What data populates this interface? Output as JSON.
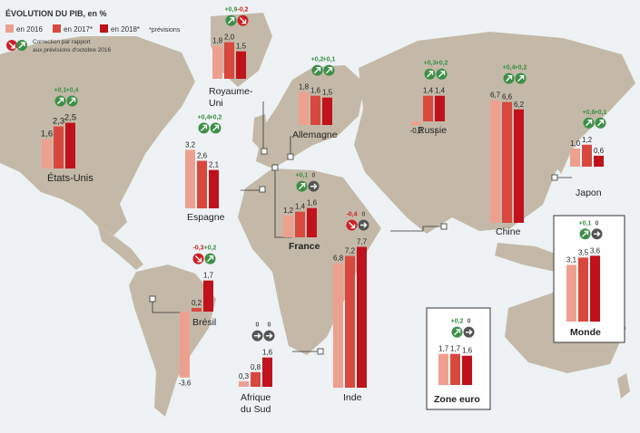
{
  "header": {
    "title": "ÉVOLUTION DU PIB, en %",
    "legend_2016": "en 2016",
    "legend_2017": "en 2017*",
    "legend_2018": "en 2018*",
    "forecast_note": "*prévisions",
    "correction_note_line1": "Correction par rapport",
    "correction_note_line2": "aux prévisions d'octobre 2016"
  },
  "colors": {
    "y2016": "#eea090",
    "y2017": "#d9483e",
    "y2018": "#c0121c",
    "land": "#c4b9a8",
    "sea": "#eef2f4",
    "up_badge": "#3d8f48",
    "down_badge": "#cc2027",
    "flat_badge": "#555555"
  },
  "chart_data": [
    {
      "type": "bar",
      "name": "États-Unis",
      "name_lines": [
        "États-Unis"
      ],
      "categories": [
        "2016",
        "2017*",
        "2018*"
      ],
      "values": [
        1.6,
        2.3,
        2.5
      ],
      "labels": [
        "1,6",
        "2,3",
        "2,5"
      ],
      "corrections": [
        {
          "label": "+0,1",
          "dir": "up"
        },
        {
          "label": "+0,4",
          "dir": "up"
        }
      ]
    },
    {
      "type": "bar",
      "name": "Royaume-Uni",
      "name_lines": [
        "Royaume-",
        "Uni"
      ],
      "categories": [
        "2016",
        "2017*",
        "2018*"
      ],
      "values": [
        1.8,
        2.0,
        1.5
      ],
      "labels": [
        "1,8",
        "2,0",
        "1,5"
      ],
      "corrections": [
        {
          "label": "+0,9",
          "dir": "up"
        },
        {
          "label": "-0,2",
          "dir": "down"
        }
      ]
    },
    {
      "type": "bar",
      "name": "Allemagne",
      "name_lines": [
        "Allemagne"
      ],
      "categories": [
        "2016",
        "2017*",
        "2018*"
      ],
      "values": [
        1.8,
        1.6,
        1.5
      ],
      "labels": [
        "1,8",
        "1,6",
        "1,5"
      ],
      "corrections": [
        {
          "label": "+0,2",
          "dir": "up"
        },
        {
          "label": "+0,1",
          "dir": "up"
        }
      ]
    },
    {
      "type": "bar",
      "name": "Russie",
      "name_lines": [
        "Russie"
      ],
      "categories": [
        "2016",
        "2017*",
        "2018*"
      ],
      "values": [
        -0.2,
        1.4,
        1.4
      ],
      "labels": [
        "-0,2",
        "1,4",
        "1,4"
      ],
      "corrections": [
        {
          "label": "+0,3",
          "dir": "up"
        },
        {
          "label": "+0,2",
          "dir": "up"
        }
      ]
    },
    {
      "type": "bar",
      "name": "Chine",
      "name_lines": [
        "Chine"
      ],
      "categories": [
        "2016",
        "2017*",
        "2018*"
      ],
      "values": [
        6.7,
        6.6,
        6.2
      ],
      "labels": [
        "6,7",
        "6,6",
        "6,2"
      ],
      "corrections": [
        {
          "label": "+0,4",
          "dir": "up"
        },
        {
          "label": "+0,2",
          "dir": "up"
        }
      ]
    },
    {
      "type": "bar",
      "name": "Japon",
      "name_lines": [
        "Japon"
      ],
      "categories": [
        "2016",
        "2017*",
        "2018*"
      ],
      "values": [
        1.0,
        1.2,
        0.6
      ],
      "labels": [
        "1,0",
        "1,2",
        "0,6"
      ],
      "corrections": [
        {
          "label": "+0,6",
          "dir": "up"
        },
        {
          "label": "+0,1",
          "dir": "up"
        }
      ]
    },
    {
      "type": "bar",
      "name": "Espagne",
      "name_lines": [
        "Espagne"
      ],
      "categories": [
        "2016",
        "2017*",
        "2018*"
      ],
      "values": [
        3.2,
        2.6,
        2.1
      ],
      "labels": [
        "3,2",
        "2,6",
        "2,1"
      ],
      "corrections": [
        {
          "label": "+0,4",
          "dir": "up"
        },
        {
          "label": "+0,2",
          "dir": "up"
        }
      ]
    },
    {
      "type": "bar",
      "name": "France",
      "name_lines": [
        "France"
      ],
      "categories": [
        "2016",
        "2017*",
        "2018*"
      ],
      "values": [
        1.2,
        1.4,
        1.6
      ],
      "labels": [
        "1,2",
        "1,4",
        "1,6"
      ],
      "corrections": [
        {
          "label": "+0,1",
          "dir": "up"
        },
        {
          "label": "0",
          "dir": "flat"
        }
      ]
    },
    {
      "type": "bar",
      "name": "Brésil",
      "name_lines": [
        "Brésil"
      ],
      "categories": [
        "2016",
        "2017*",
        "2018*"
      ],
      "values": [
        -3.6,
        0.2,
        1.7
      ],
      "labels": [
        "-3,6",
        "0,2",
        "1,7"
      ],
      "corrections": [
        {
          "label": "-0,3",
          "dir": "down"
        },
        {
          "label": "+0,2",
          "dir": "up"
        }
      ]
    },
    {
      "type": "bar",
      "name": "Afrique du Sud",
      "name_lines": [
        "Afrique",
        "du Sud"
      ],
      "categories": [
        "2016",
        "2017*",
        "2018*"
      ],
      "values": [
        0.3,
        0.8,
        1.6
      ],
      "labels": [
        "0,3",
        "0,8",
        "1,6"
      ],
      "corrections": [
        {
          "label": "0",
          "dir": "flat"
        },
        {
          "label": "0",
          "dir": "flat"
        }
      ]
    },
    {
      "type": "bar",
      "name": "Inde",
      "name_lines": [
        "Inde"
      ],
      "categories": [
        "2016",
        "2017*",
        "2018*"
      ],
      "values": [
        6.8,
        7.2,
        7.7
      ],
      "labels": [
        "6,8",
        "7,2",
        "7,7"
      ],
      "corrections": [
        {
          "label": "-0,4",
          "dir": "down"
        },
        {
          "label": "0",
          "dir": "flat"
        }
      ]
    },
    {
      "type": "bar",
      "name": "Zone euro",
      "name_lines": [
        "Zone euro"
      ],
      "categories": [
        "2016",
        "2017*",
        "2018*"
      ],
      "values": [
        1.7,
        1.7,
        1.6
      ],
      "labels": [
        "1,7",
        "1,7",
        "1,6"
      ],
      "corrections": [
        {
          "label": "+0,2",
          "dir": "up"
        },
        {
          "label": "0",
          "dir": "flat"
        }
      ]
    },
    {
      "type": "bar",
      "name": "Monde",
      "name_lines": [
        "Monde"
      ],
      "categories": [
        "2016",
        "2017*",
        "2018*"
      ],
      "values": [
        3.1,
        3.5,
        3.6
      ],
      "labels": [
        "3,1",
        "3,5",
        "3,6"
      ],
      "corrections": [
        {
          "label": "+0,1",
          "dir": "up"
        },
        {
          "label": "0",
          "dir": "flat"
        }
      ]
    }
  ]
}
